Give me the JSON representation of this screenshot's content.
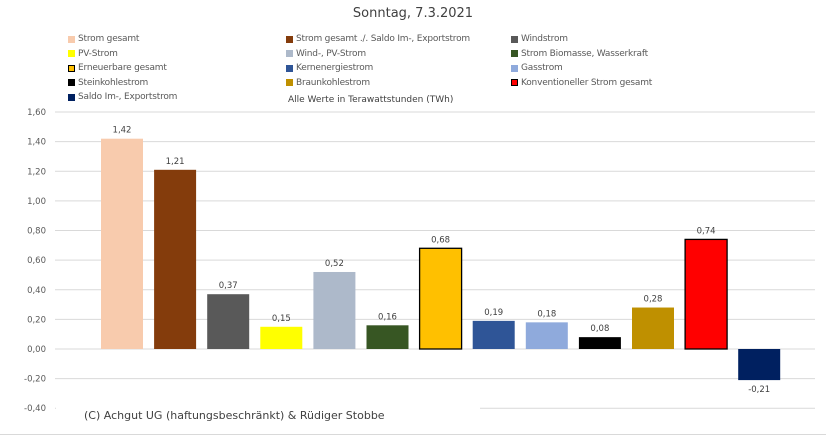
{
  "chart_data": {
    "type": "bar",
    "title": "Sonntag, 7.3.2021",
    "note": "Alle Werte in Terawattstunden (TWh)",
    "ylim": [
      -0.4,
      1.6
    ],
    "yticks": [
      "1,60",
      "1,40",
      "1,20",
      "1,00",
      "0,80",
      "0,60",
      "0,40",
      "0,20",
      "0,00",
      "-0,20",
      "-0,40"
    ],
    "grid": true,
    "legend_position": "top",
    "categories": [
      "Strom gesamt",
      "Strom gesamt ./. Saldo Im-, Exportstrom",
      "Windstrom",
      "PV-Strom",
      "Wind-, PV-Strom",
      "Strom Biomasse, Wasserkraft",
      "Erneuerbare gesamt",
      "Kernenergiestrom",
      "Gasstrom",
      "Steinkohlestrom",
      "Braunkohlestrom",
      "Konventioneller Strom gesamt",
      "Saldo Im-, Exportstrom"
    ],
    "values": [
      1.42,
      1.21,
      0.37,
      0.15,
      0.52,
      0.16,
      0.68,
      0.19,
      0.18,
      0.08,
      0.28,
      0.74,
      -0.21
    ],
    "labels": [
      "1,42",
      "1,21",
      "0,37",
      "0,15",
      "0,52",
      "0,16",
      "0,68",
      "0,19",
      "0,18",
      "0,08",
      "0,28",
      "0,74",
      "-0,21"
    ],
    "colors": [
      "#f8cbad",
      "#843c0c",
      "#595959",
      "#ffff00",
      "#adb9ca",
      "#375623",
      "#ffc000",
      "#2f5597",
      "#8faadc",
      "#000000",
      "#bf9000",
      "#ff0000",
      "#002060"
    ],
    "outlined": [
      false,
      false,
      false,
      false,
      false,
      false,
      true,
      false,
      false,
      false,
      false,
      true,
      false
    ]
  },
  "footer": "(C) Achgut UG (haftungsbeschränkt) & Rüdiger Stobbe"
}
